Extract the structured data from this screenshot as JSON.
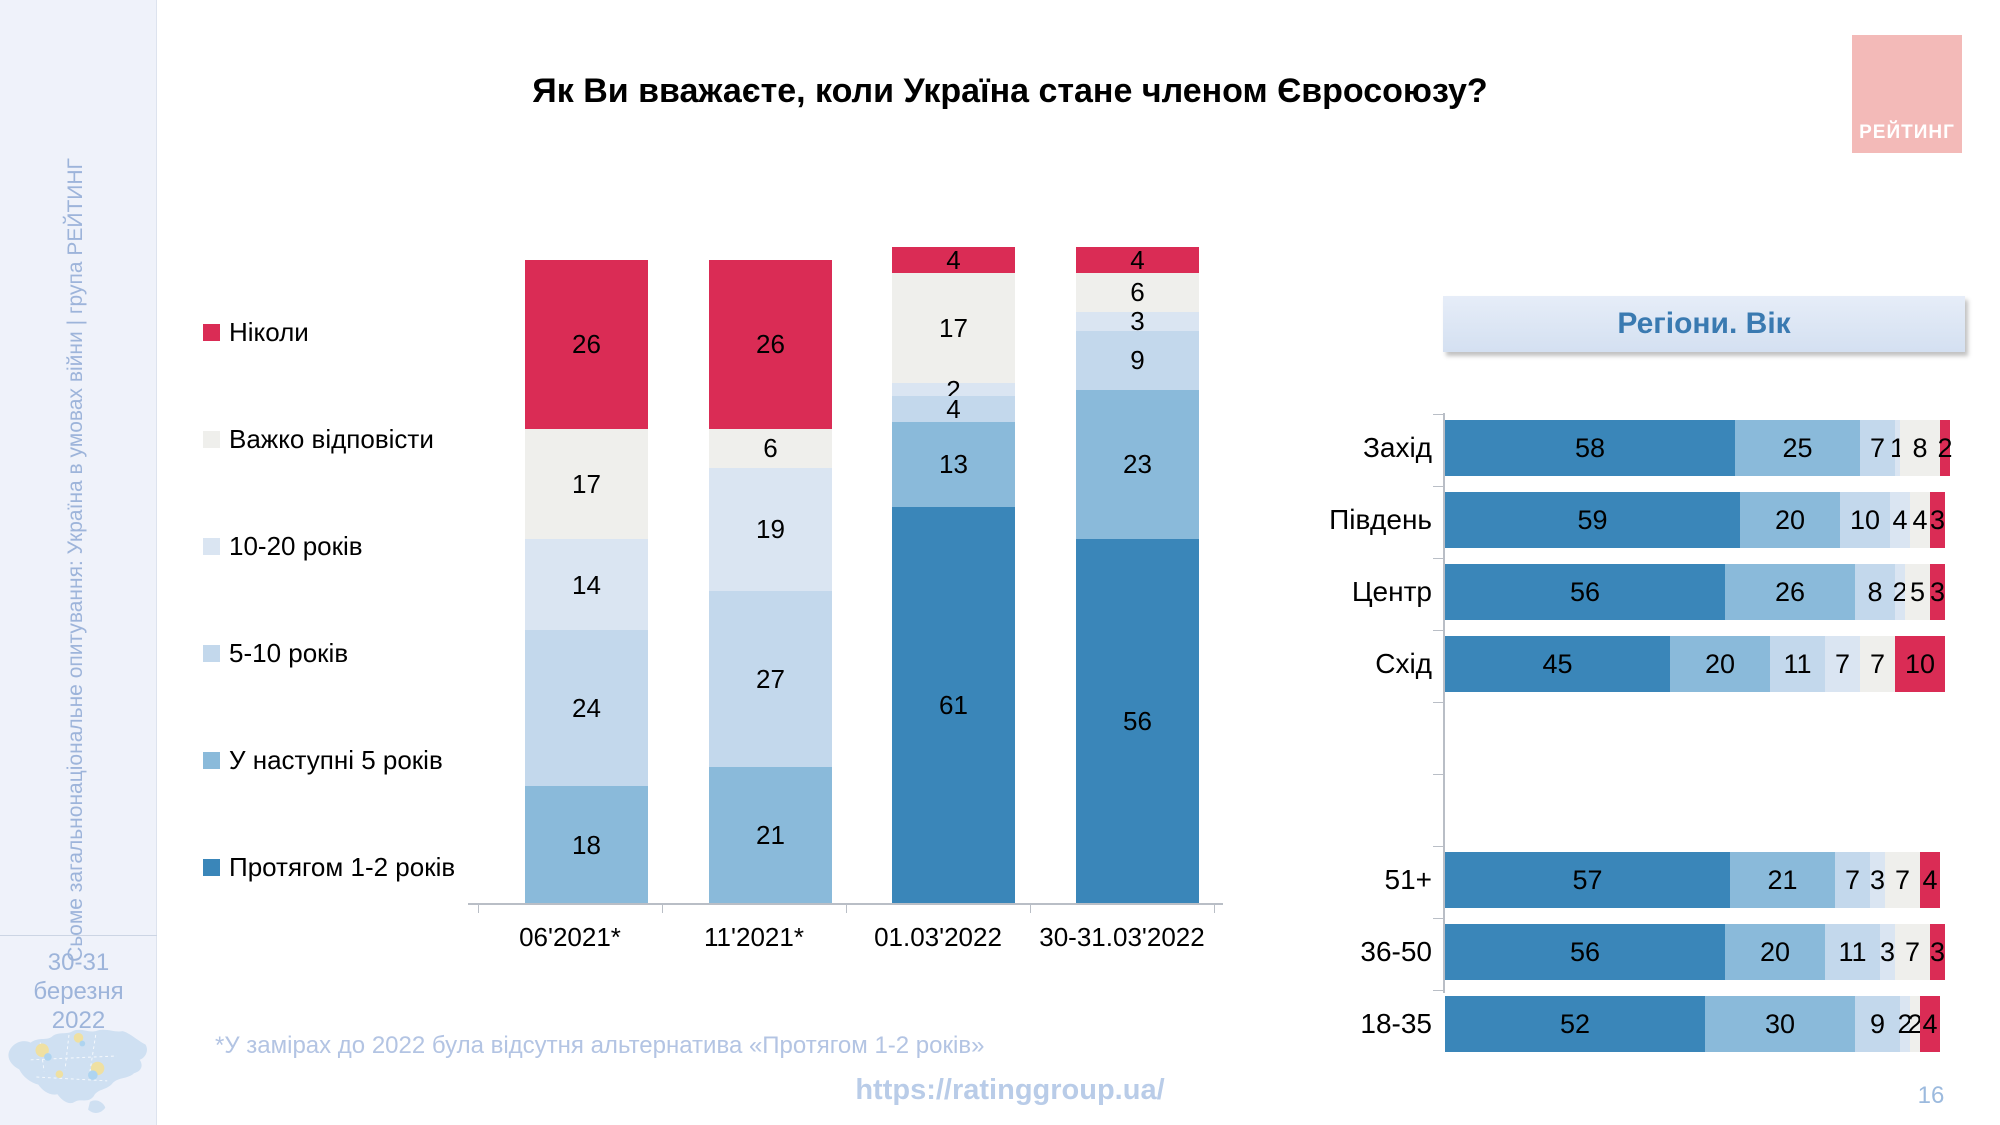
{
  "slide": {
    "title": "Як Ви вважаєте, коли Україна стане членом Євросоюзу?",
    "footnote": "*У замірах до 2022 була відсутня альтернатива «Протягом 1-2 років»",
    "url": "https://ratinggroup.ua/",
    "page_number": "16"
  },
  "sidebar": {
    "vertical_text": "Сьоме загальнонаціональне опитування: Україна в умовах війни | група РЕЙТИНГ",
    "date_line1": "30-31 березня",
    "date_line2": "2022"
  },
  "logo": {
    "text": "РЕЙТИНГ",
    "bg_color": "#f3bab8",
    "text_color": "#ffffff"
  },
  "colors": {
    "never_red": "#da2c55",
    "hard_gray": "#efefec",
    "y10_20": "#dae5f2",
    "y5_10": "#c3d8ec",
    "next5": "#8abada",
    "y1_2": "#3a86b9",
    "accent_text_blue": "#3a7ab1",
    "light_blue_text": "#9db4da",
    "axis_gray": "#b9bec6"
  },
  "legend": {
    "items": [
      {
        "label": "Ніколи",
        "color": "#da2c55"
      },
      {
        "label": "Важко відповісти",
        "color": "#efefec"
      },
      {
        "label": "10-20 років",
        "color": "#dae5f2"
      },
      {
        "label": "5-10 років",
        "color": "#c3d8ec"
      },
      {
        "label": "У наступні 5 років",
        "color": "#8abada"
      },
      {
        "label": "Протягом 1-2 років",
        "color": "#3a86b9"
      }
    ]
  },
  "chart_data": [
    {
      "type": "bar",
      "stacked": true,
      "orientation": "vertical",
      "title": "Як Ви вважаєте, коли Україна стане членом Євросоюзу?",
      "unit": "percent",
      "categories": [
        "06'2021*",
        "11'2021*",
        "01.03'2022",
        "30-31.03'2022"
      ],
      "series": [
        {
          "name": "Протягом 1-2 років",
          "color": "#3a86b9",
          "values": [
            null,
            null,
            61,
            56
          ]
        },
        {
          "name": "У наступні 5 років",
          "color": "#8abada",
          "values": [
            18,
            21,
            13,
            23
          ]
        },
        {
          "name": "5-10 років",
          "color": "#c3d8ec",
          "values": [
            24,
            27,
            4,
            9
          ]
        },
        {
          "name": "10-20 років",
          "color": "#dae5f2",
          "values": [
            14,
            19,
            2,
            3
          ]
        },
        {
          "name": "Важко відповісти",
          "color": "#efefec",
          "values": [
            17,
            6,
            17,
            6
          ]
        },
        {
          "name": "Ніколи",
          "color": "#da2c55",
          "values": [
            26,
            26,
            4,
            4
          ]
        }
      ],
      "stack_order_top_to_bottom": [
        "Ніколи",
        "Важко відповісти",
        "10-20 років",
        "5-10 років",
        "У наступні 5 років",
        "Протягом 1-2 років"
      ],
      "legend_position": "left"
    },
    {
      "type": "bar",
      "stacked": true,
      "orientation": "horizontal",
      "title": "Регіони. Вік",
      "unit": "percent",
      "segment_order_left_to_right": [
        "Протягом 1-2 років",
        "У наступні 5 років",
        "5-10 років",
        "10-20 років",
        "Важко відповісти",
        "Ніколи"
      ],
      "segment_colors": [
        "#3a86b9",
        "#8abada",
        "#c3d8ec",
        "#dae5f2",
        "#efefec",
        "#da2c55"
      ],
      "rows": [
        {
          "label": "Захід",
          "group": "region",
          "values": [
            58,
            25,
            7,
            1,
            8,
            2
          ]
        },
        {
          "label": "Південь",
          "group": "region",
          "values": [
            59,
            20,
            10,
            4,
            4,
            3
          ]
        },
        {
          "label": "Центр",
          "group": "region",
          "values": [
            56,
            26,
            8,
            2,
            5,
            3
          ]
        },
        {
          "label": "Схід",
          "group": "region",
          "values": [
            45,
            20,
            11,
            7,
            7,
            10
          ]
        },
        {
          "label": "51+",
          "group": "age",
          "values": [
            57,
            21,
            7,
            3,
            7,
            4
          ]
        },
        {
          "label": "36-50",
          "group": "age",
          "values": [
            56,
            20,
            11,
            3,
            7,
            3
          ]
        },
        {
          "label": "18-35",
          "group": "age",
          "values": [
            52,
            30,
            9,
            2,
            2,
            4
          ]
        }
      ]
    }
  ]
}
